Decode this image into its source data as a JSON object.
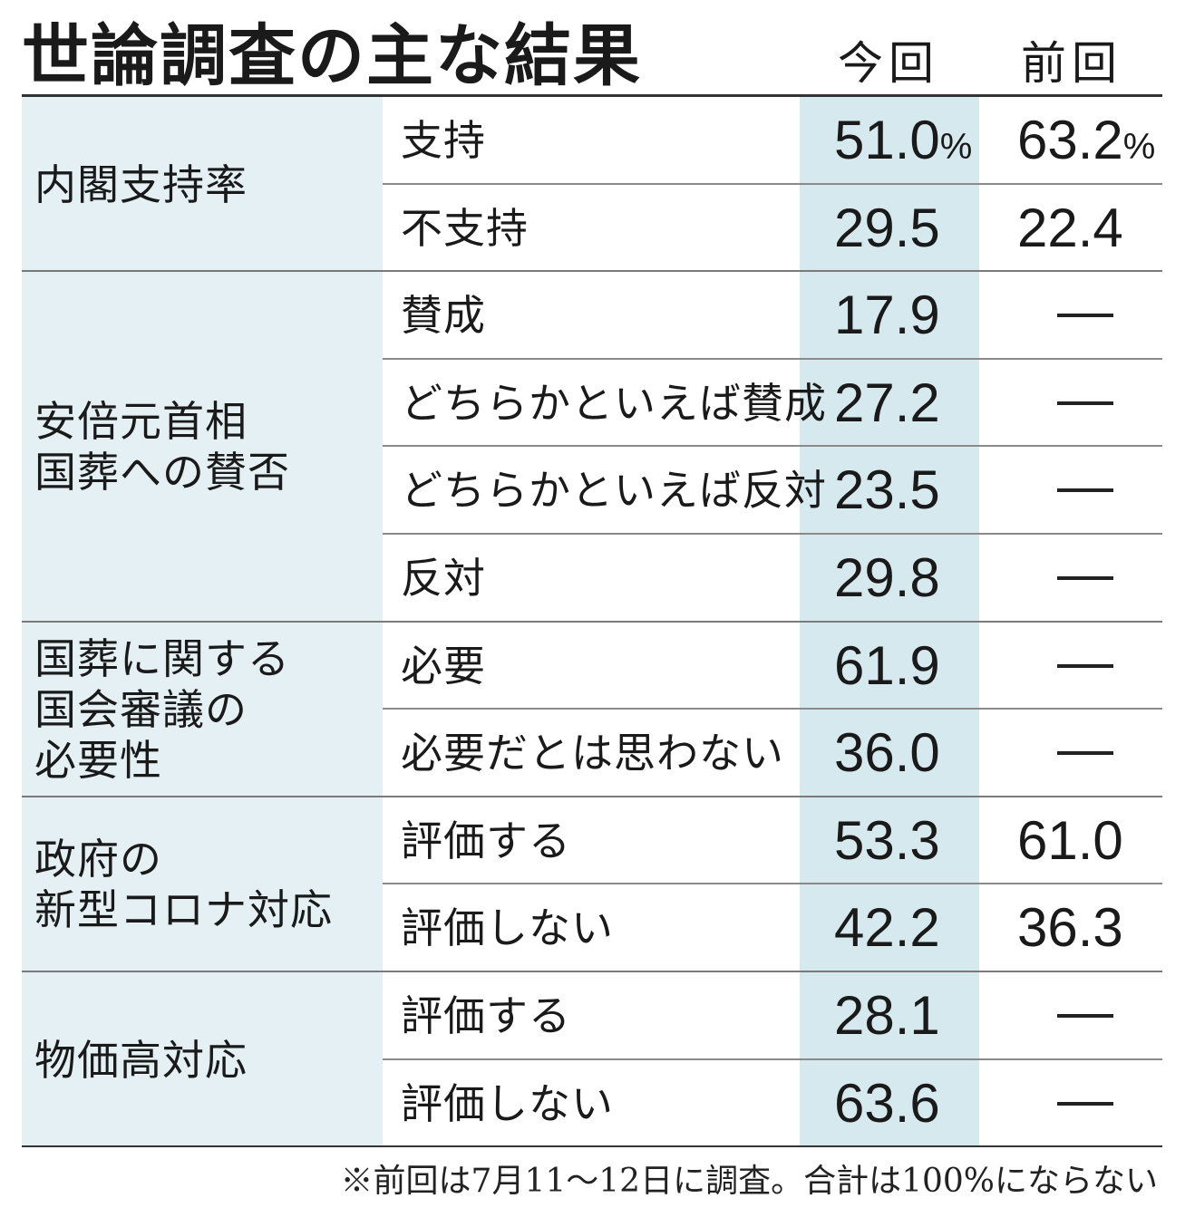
{
  "title": "世論調査の主な結果",
  "columns": {
    "current": "今回",
    "previous": "前回"
  },
  "pct": "%",
  "note": "※前回は7月11～12日に調査。合計は100%にならない",
  "chart_data": {
    "type": "table",
    "title": "世論調査の主な結果",
    "columns": [
      "今回",
      "前回"
    ],
    "groups": [
      {
        "label": "内閣支持率",
        "rows": [
          {
            "label": "支持",
            "current": "51.0",
            "previous": "63.2"
          },
          {
            "label": "不支持",
            "current": "29.5",
            "previous": "22.4"
          }
        ]
      },
      {
        "label": "安倍元首相\n国葬への賛否",
        "rows": [
          {
            "label": "賛成",
            "current": "17.9",
            "previous": null
          },
          {
            "label": "どちらかといえば賛成",
            "current": "27.2",
            "previous": null
          },
          {
            "label": "どちらかといえば反対",
            "current": "23.5",
            "previous": null
          },
          {
            "label": "反対",
            "current": "29.8",
            "previous": null
          }
        ]
      },
      {
        "label": "国葬に関する\n国会審議の\n必要性",
        "rows": [
          {
            "label": "必要",
            "current": "61.9",
            "previous": null
          },
          {
            "label": "必要だとは思わない",
            "current": "36.0",
            "previous": null
          }
        ]
      },
      {
        "label": "政府の\n新型コロナ対応",
        "rows": [
          {
            "label": "評価する",
            "current": "53.3",
            "previous": "61.0"
          },
          {
            "label": "評価しない",
            "current": "42.2",
            "previous": "36.3"
          }
        ]
      },
      {
        "label": "物価高対応",
        "rows": [
          {
            "label": "評価する",
            "current": "28.1",
            "previous": null
          },
          {
            "label": "評価しない",
            "current": "63.6",
            "previous": null
          }
        ]
      }
    ]
  }
}
